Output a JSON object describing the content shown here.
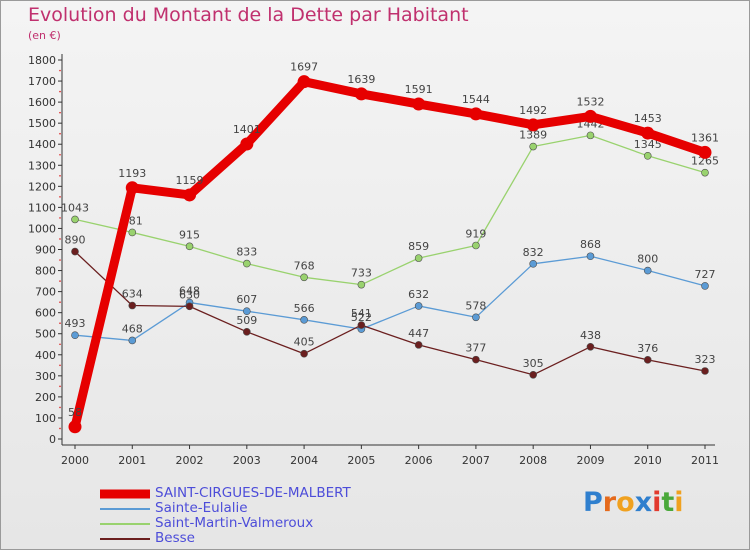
{
  "header": {
    "title": "Evolution du Montant de la Dette par Habitant",
    "subtitle": "(en €)"
  },
  "logo": {
    "text": "Proxiti",
    "letters": [
      {
        "ch": "P",
        "color": "#2f7fce"
      },
      {
        "ch": "r",
        "color": "#e56a1c"
      },
      {
        "ch": "o",
        "color": "#f0a11f"
      },
      {
        "ch": "x",
        "color": "#2f7fce"
      },
      {
        "ch": "i",
        "color": "#e23a2e"
      },
      {
        "ch": "t",
        "color": "#4aa83a"
      },
      {
        "ch": "i",
        "color": "#f0a11f"
      }
    ]
  },
  "chart_data": {
    "type": "line",
    "title": "Evolution du Montant de la Dette par Habitant",
    "subtitle": "(en €)",
    "x": [
      "2000",
      "2001",
      "2002",
      "2003",
      "2004",
      "2005",
      "2006",
      "2007",
      "2008",
      "2009",
      "2010",
      "2011"
    ],
    "ylim": [
      0,
      1800
    ],
    "yticks": [
      0,
      100,
      200,
      300,
      400,
      500,
      600,
      700,
      800,
      900,
      1000,
      1100,
      1200,
      1300,
      1400,
      1500,
      1600,
      1700,
      1800
    ],
    "grid": false,
    "legend_position": "bottom-left",
    "series": [
      {
        "name": "SAINT-CIRGUES-DE-MALBERT",
        "color": "#e60000",
        "values": [
          58,
          1193,
          1159,
          1401,
          1697,
          1639,
          1591,
          1544,
          1492,
          1532,
          1453,
          1361
        ],
        "emphasis": true
      },
      {
        "name": "Sainte-Eulalie",
        "color": "#5b9bd5",
        "values": [
          493,
          468,
          648,
          607,
          566,
          522,
          632,
          578,
          832,
          868,
          800,
          727
        ]
      },
      {
        "name": "Saint-Martin-Valmeroux",
        "color": "#99d26e",
        "values": [
          1043,
          981,
          915,
          833,
          768,
          733,
          859,
          919,
          1389,
          1442,
          1345,
          1265
        ]
      },
      {
        "name": "Besse",
        "color": "#6b1f1f",
        "values": [
          890,
          634,
          630,
          509,
          405,
          541,
          447,
          377,
          305,
          438,
          376,
          323
        ]
      }
    ]
  }
}
